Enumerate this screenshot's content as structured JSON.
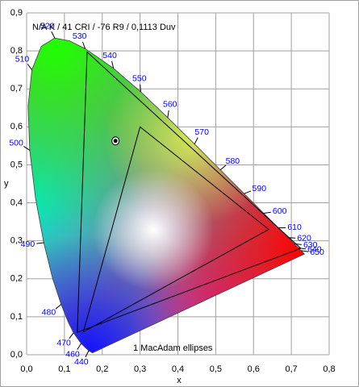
{
  "chart_data": {
    "type": "chromaticity",
    "title": "N/A K / 41 CRI / -76 R9 / 0,1113 Duv",
    "x_label": "x",
    "y_label": "y",
    "annotation": "1 MacAdam ellipses",
    "xlim": [
      0,
      0.8
    ],
    "ylim": [
      0,
      0.9
    ],
    "xticks": [
      {
        "value": 0,
        "label": "0,0"
      },
      {
        "value": 0.1,
        "label": "0,1"
      },
      {
        "value": 0.2,
        "label": "0,2"
      },
      {
        "value": 0.3,
        "label": "0,3"
      },
      {
        "value": 0.4,
        "label": "0,4"
      },
      {
        "value": 0.5,
        "label": "0,5"
      },
      {
        "value": 0.6,
        "label": "0,6"
      },
      {
        "value": 0.7,
        "label": "0,7"
      },
      {
        "value": 0.8,
        "label": "0,8"
      }
    ],
    "yticks": [
      {
        "value": 0,
        "label": "0,0"
      },
      {
        "value": 0.1,
        "label": "0,1"
      },
      {
        "value": 0.2,
        "label": "0,2"
      },
      {
        "value": 0.3,
        "label": "0,3"
      },
      {
        "value": 0.4,
        "label": "0,4"
      },
      {
        "value": 0.5,
        "label": "0,5"
      },
      {
        "value": 0.6,
        "label": "0,6"
      },
      {
        "value": 0.7,
        "label": "0,7"
      },
      {
        "value": 0.8,
        "label": "0,8"
      },
      {
        "value": 0.9,
        "label": "0,9"
      }
    ],
    "grid": true,
    "locus": {
      "color": "#0000ff",
      "labels": [
        null,
        440,
        null,
        460,
        470,
        null,
        480,
        null,
        490,
        null,
        500,
        null,
        510,
        null,
        520,
        null,
        530,
        540,
        550,
        560,
        570,
        580,
        590,
        600,
        610,
        620,
        630,
        640,
        650,
        null
      ],
      "x": [
        0.1741,
        0.1644,
        0.1566,
        0.144,
        0.1241,
        0.1096,
        0.0913,
        0.0687,
        0.0454,
        0.0235,
        0.0082,
        0.0039,
        0.0139,
        0.0389,
        0.0743,
        0.1142,
        0.1547,
        0.2296,
        0.3016,
        0.3731,
        0.4441,
        0.5125,
        0.5752,
        0.627,
        0.6658,
        0.6915,
        0.7079,
        0.719,
        0.726,
        0.7347
      ],
      "y": [
        0.005,
        0.0109,
        0.0177,
        0.0297,
        0.0578,
        0.0868,
        0.1327,
        0.2007,
        0.295,
        0.4127,
        0.5384,
        0.6548,
        0.7502,
        0.812,
        0.8338,
        0.8262,
        0.8059,
        0.7543,
        0.6923,
        0.6245,
        0.5547,
        0.4866,
        0.4242,
        0.3725,
        0.334,
        0.3083,
        0.292,
        0.2809,
        0.274,
        0.2653
      ]
    },
    "gamuts": [
      {
        "x": [
          0.16,
          0.134,
          0.725
        ],
        "y": [
          0.797,
          0.059,
          0.28
        ]
      },
      {
        "x": [
          0.64,
          0.3,
          0.15
        ],
        "y": [
          0.33,
          0.6,
          0.06
        ]
      }
    ],
    "point": {
      "x": 0.235,
      "y": 0.563
    }
  }
}
